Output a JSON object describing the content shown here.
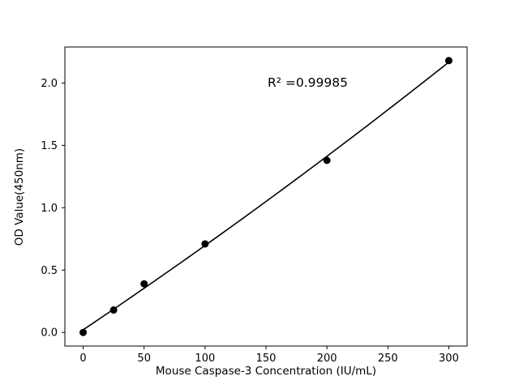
{
  "chart_data": {
    "type": "scatter",
    "title": "",
    "xlabel": "Mouse Caspase-3 Concentration (IU/mL)",
    "ylabel": "OD Value(450nm)",
    "annotation": "R² =0.99985",
    "x": [
      0,
      25,
      50,
      100,
      200,
      300
    ],
    "y": [
      0.0,
      0.18,
      0.39,
      0.71,
      1.38,
      2.18
    ],
    "fit": "quadratic",
    "xlim": [
      -15,
      315
    ],
    "ylim": [
      -0.109,
      2.289
    ],
    "xticks": [
      0,
      50,
      100,
      150,
      200,
      250,
      300
    ],
    "xtick_labels": [
      "0",
      "50",
      "100",
      "150",
      "200",
      "250",
      "300"
    ],
    "yticks": [
      0.0,
      0.5,
      1.0,
      1.5,
      2.0
    ],
    "ytick_labels": [
      "0.0",
      "0.5",
      "1.0",
      "1.5",
      "2.0"
    ],
    "grid": false,
    "legend": "none",
    "marker_color": "#000000",
    "line_color": "#000000",
    "background": "#ffffff"
  }
}
